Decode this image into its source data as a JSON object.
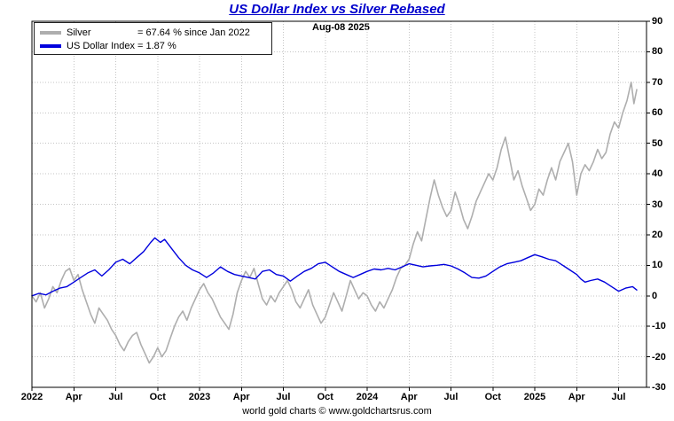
{
  "chart_data": {
    "type": "line",
    "title": "US Dollar Index vs Silver Rebased",
    "title_color": "#0000cc",
    "date_label": "Aug-08  2025",
    "footer": "world gold charts © www.goldchartsrus.com",
    "grid": true,
    "legend_position": "top-left",
    "y_axis_side": "right",
    "xlabel": "",
    "ylabel": "",
    "ylim": [
      -30,
      90
    ],
    "ytick_step": 10,
    "y_tick_labels": [
      90,
      80,
      70,
      60,
      50,
      40,
      30,
      20,
      10,
      0,
      -10,
      -20,
      -30
    ],
    "x_domain_months": [
      0,
      44
    ],
    "x_ticks": [
      {
        "m": 0,
        "label": "2022"
      },
      {
        "m": 3,
        "label": "Apr"
      },
      {
        "m": 6,
        "label": "Jul"
      },
      {
        "m": 9,
        "label": "Oct"
      },
      {
        "m": 12,
        "label": "2023"
      },
      {
        "m": 15,
        "label": "Apr"
      },
      {
        "m": 18,
        "label": "Jul"
      },
      {
        "m": 21,
        "label": "Oct"
      },
      {
        "m": 24,
        "label": "2024"
      },
      {
        "m": 27,
        "label": "Apr"
      },
      {
        "m": 30,
        "label": "Jul"
      },
      {
        "m": 33,
        "label": "Oct"
      },
      {
        "m": 36,
        "label": "2025"
      },
      {
        "m": 39,
        "label": "Apr"
      },
      {
        "m": 42,
        "label": "Jul"
      }
    ],
    "series": [
      {
        "name": "Silver",
        "legend_value": "= 67.64 % since Jan 2022",
        "color": "#aeaeae",
        "width": 1.6,
        "points": [
          [
            0,
            0
          ],
          [
            0.3,
            -2
          ],
          [
            0.6,
            1
          ],
          [
            0.9,
            -4
          ],
          [
            1.2,
            -1
          ],
          [
            1.5,
            3
          ],
          [
            1.8,
            1
          ],
          [
            2.1,
            5
          ],
          [
            2.4,
            8
          ],
          [
            2.7,
            9
          ],
          [
            3.0,
            5
          ],
          [
            3.3,
            7
          ],
          [
            3.6,
            2
          ],
          [
            3.9,
            -2
          ],
          [
            4.2,
            -6
          ],
          [
            4.5,
            -9
          ],
          [
            4.8,
            -4
          ],
          [
            5.1,
            -6
          ],
          [
            5.4,
            -8
          ],
          [
            5.7,
            -11
          ],
          [
            6.0,
            -13
          ],
          [
            6.3,
            -16
          ],
          [
            6.6,
            -18
          ],
          [
            6.9,
            -15
          ],
          [
            7.2,
            -13
          ],
          [
            7.5,
            -12
          ],
          [
            7.8,
            -16
          ],
          [
            8.1,
            -19
          ],
          [
            8.4,
            -22
          ],
          [
            8.7,
            -20
          ],
          [
            9.0,
            -17
          ],
          [
            9.3,
            -20
          ],
          [
            9.6,
            -18
          ],
          [
            9.9,
            -14
          ],
          [
            10.2,
            -10
          ],
          [
            10.5,
            -7
          ],
          [
            10.8,
            -5
          ],
          [
            11.1,
            -8
          ],
          [
            11.4,
            -4
          ],
          [
            11.7,
            -1
          ],
          [
            12.0,
            2
          ],
          [
            12.3,
            4
          ],
          [
            12.6,
            1
          ],
          [
            12.9,
            -1
          ],
          [
            13.2,
            -4
          ],
          [
            13.5,
            -7
          ],
          [
            13.8,
            -9
          ],
          [
            14.1,
            -11
          ],
          [
            14.4,
            -6
          ],
          [
            14.7,
            1
          ],
          [
            15.0,
            5
          ],
          [
            15.3,
            8
          ],
          [
            15.6,
            6
          ],
          [
            15.9,
            9
          ],
          [
            16.2,
            4
          ],
          [
            16.5,
            -1
          ],
          [
            16.8,
            -3
          ],
          [
            17.1,
            0
          ],
          [
            17.4,
            -2
          ],
          [
            17.7,
            1
          ],
          [
            18.0,
            3
          ],
          [
            18.3,
            5
          ],
          [
            18.6,
            2
          ],
          [
            18.9,
            -2
          ],
          [
            19.2,
            -4
          ],
          [
            19.5,
            -1
          ],
          [
            19.8,
            2
          ],
          [
            20.1,
            -3
          ],
          [
            20.4,
            -6
          ],
          [
            20.7,
            -9
          ],
          [
            21.0,
            -7
          ],
          [
            21.3,
            -3
          ],
          [
            21.6,
            1
          ],
          [
            21.9,
            -2
          ],
          [
            22.2,
            -5
          ],
          [
            22.5,
            0
          ],
          [
            22.8,
            5
          ],
          [
            23.1,
            2
          ],
          [
            23.4,
            -1
          ],
          [
            23.7,
            1
          ],
          [
            24.0,
            0
          ],
          [
            24.3,
            -3
          ],
          [
            24.6,
            -5
          ],
          [
            24.9,
            -2
          ],
          [
            25.2,
            -4
          ],
          [
            25.5,
            -1
          ],
          [
            25.8,
            2
          ],
          [
            26.1,
            6
          ],
          [
            26.4,
            9
          ],
          [
            26.7,
            10
          ],
          [
            27.0,
            12
          ],
          [
            27.3,
            17
          ],
          [
            27.6,
            21
          ],
          [
            27.9,
            18
          ],
          [
            28.2,
            25
          ],
          [
            28.5,
            32
          ],
          [
            28.8,
            38
          ],
          [
            29.1,
            33
          ],
          [
            29.4,
            29
          ],
          [
            29.7,
            26
          ],
          [
            30.0,
            28
          ],
          [
            30.3,
            34
          ],
          [
            30.6,
            30
          ],
          [
            30.9,
            25
          ],
          [
            31.2,
            22
          ],
          [
            31.5,
            26
          ],
          [
            31.8,
            31
          ],
          [
            32.1,
            34
          ],
          [
            32.4,
            37
          ],
          [
            32.7,
            40
          ],
          [
            33.0,
            38
          ],
          [
            33.3,
            42
          ],
          [
            33.6,
            48
          ],
          [
            33.9,
            52
          ],
          [
            34.2,
            45
          ],
          [
            34.5,
            38
          ],
          [
            34.8,
            41
          ],
          [
            35.1,
            36
          ],
          [
            35.4,
            32
          ],
          [
            35.7,
            28
          ],
          [
            36.0,
            30
          ],
          [
            36.3,
            35
          ],
          [
            36.6,
            33
          ],
          [
            36.9,
            38
          ],
          [
            37.2,
            42
          ],
          [
            37.5,
            38
          ],
          [
            37.8,
            44
          ],
          [
            38.1,
            47
          ],
          [
            38.4,
            50
          ],
          [
            38.7,
            44
          ],
          [
            39.0,
            33
          ],
          [
            39.3,
            40
          ],
          [
            39.6,
            43
          ],
          [
            39.9,
            41
          ],
          [
            40.2,
            44
          ],
          [
            40.5,
            48
          ],
          [
            40.8,
            45
          ],
          [
            41.1,
            47
          ],
          [
            41.4,
            53
          ],
          [
            41.7,
            57
          ],
          [
            42.0,
            55
          ],
          [
            42.3,
            60
          ],
          [
            42.6,
            64
          ],
          [
            42.9,
            70
          ],
          [
            43.1,
            63
          ],
          [
            43.3,
            67.6
          ]
        ]
      },
      {
        "name": "US Dollar Index",
        "legend_value": "= 1.87 %",
        "color": "#0000dd",
        "width": 1.4,
        "points": [
          [
            0,
            0
          ],
          [
            0.5,
            0.8
          ],
          [
            1,
            0.3
          ],
          [
            1.5,
            1.5
          ],
          [
            2,
            2.5
          ],
          [
            2.5,
            3
          ],
          [
            3,
            4.5
          ],
          [
            3.5,
            6
          ],
          [
            4,
            7.5
          ],
          [
            4.5,
            8.5
          ],
          [
            5,
            6.5
          ],
          [
            5.5,
            8.5
          ],
          [
            6,
            11
          ],
          [
            6.5,
            12
          ],
          [
            7,
            10.5
          ],
          [
            7.5,
            12.5
          ],
          [
            8,
            14.5
          ],
          [
            8.5,
            17.5
          ],
          [
            8.8,
            19
          ],
          [
            9.2,
            17.5
          ],
          [
            9.5,
            18.5
          ],
          [
            10,
            15.5
          ],
          [
            10.5,
            12.5
          ],
          [
            11,
            10
          ],
          [
            11.5,
            8.5
          ],
          [
            12,
            7.5
          ],
          [
            12.5,
            6
          ],
          [
            13,
            7.5
          ],
          [
            13.5,
            9.5
          ],
          [
            14,
            8
          ],
          [
            14.5,
            7
          ],
          [
            15,
            6.5
          ],
          [
            15.5,
            6
          ],
          [
            16,
            5.5
          ],
          [
            16.5,
            8
          ],
          [
            17,
            8.5
          ],
          [
            17.5,
            7
          ],
          [
            18,
            6.5
          ],
          [
            18.5,
            4.8
          ],
          [
            19,
            6.5
          ],
          [
            19.5,
            8
          ],
          [
            20,
            9
          ],
          [
            20.5,
            10.5
          ],
          [
            21,
            11
          ],
          [
            21.5,
            9.5
          ],
          [
            22,
            8
          ],
          [
            22.5,
            7
          ],
          [
            23,
            6
          ],
          [
            23.5,
            7
          ],
          [
            24,
            8
          ],
          [
            24.5,
            8.8
          ],
          [
            25,
            8.5
          ],
          [
            25.5,
            9
          ],
          [
            26,
            8.5
          ],
          [
            26.5,
            9.5
          ],
          [
            27,
            10.5
          ],
          [
            27.5,
            10
          ],
          [
            28,
            9.5
          ],
          [
            28.5,
            9.8
          ],
          [
            29,
            10
          ],
          [
            29.5,
            10.3
          ],
          [
            30,
            9.8
          ],
          [
            30.5,
            8.8
          ],
          [
            31,
            7.5
          ],
          [
            31.5,
            6
          ],
          [
            32,
            5.8
          ],
          [
            32.5,
            6.5
          ],
          [
            33,
            8
          ],
          [
            33.5,
            9.5
          ],
          [
            34,
            10.5
          ],
          [
            34.5,
            11
          ],
          [
            35,
            11.5
          ],
          [
            35.5,
            12.5
          ],
          [
            36,
            13.5
          ],
          [
            36.5,
            12.8
          ],
          [
            37,
            12
          ],
          [
            37.5,
            11.5
          ],
          [
            38,
            10
          ],
          [
            38.5,
            8.5
          ],
          [
            39,
            7
          ],
          [
            39.3,
            5.5
          ],
          [
            39.6,
            4.5
          ],
          [
            40,
            5
          ],
          [
            40.5,
            5.5
          ],
          [
            41,
            4.5
          ],
          [
            41.5,
            3
          ],
          [
            42,
            1.5
          ],
          [
            42.5,
            2.5
          ],
          [
            43,
            3
          ],
          [
            43.3,
            1.9
          ]
        ]
      }
    ]
  }
}
